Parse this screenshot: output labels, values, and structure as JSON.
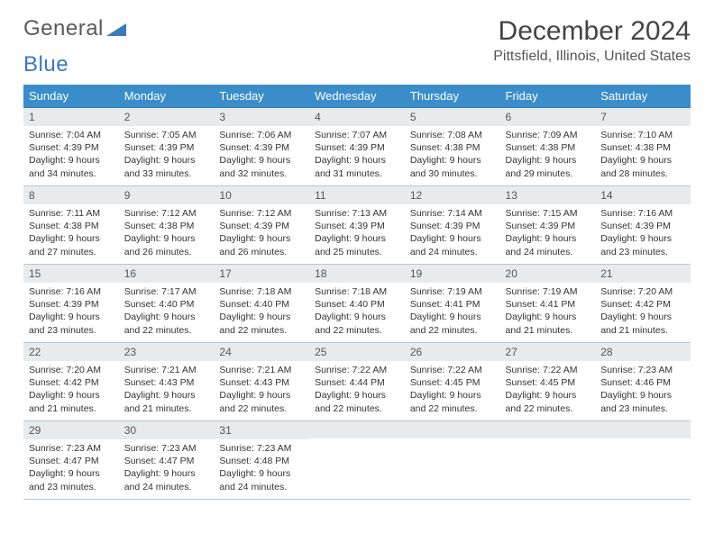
{
  "brand": {
    "word1": "General",
    "word2": "Blue"
  },
  "title": "December 2024",
  "location": "Pittsfield, Illinois, United States",
  "colors": {
    "header_bg": "#3a8dc9",
    "header_text": "#ffffff",
    "row_border_top": "#3a7ab8",
    "row_border_bottom": "#b8c5d0",
    "daynum_bg": "#e8ebee",
    "text": "#333333",
    "brand_gray": "#5a5a5a",
    "brand_blue": "#3a7ab8",
    "background": "#ffffff"
  },
  "typography": {
    "title_fontsize": 30,
    "location_fontsize": 16,
    "header_fontsize": 13,
    "daynum_fontsize": 12,
    "body_fontsize": 10.5
  },
  "day_headers": [
    "Sunday",
    "Monday",
    "Tuesday",
    "Wednesday",
    "Thursday",
    "Friday",
    "Saturday"
  ],
  "weeks": [
    [
      {
        "num": "1",
        "sunrise": "Sunrise: 7:04 AM",
        "sunset": "Sunset: 4:39 PM",
        "daylight": "Daylight: 9 hours and 34 minutes."
      },
      {
        "num": "2",
        "sunrise": "Sunrise: 7:05 AM",
        "sunset": "Sunset: 4:39 PM",
        "daylight": "Daylight: 9 hours and 33 minutes."
      },
      {
        "num": "3",
        "sunrise": "Sunrise: 7:06 AM",
        "sunset": "Sunset: 4:39 PM",
        "daylight": "Daylight: 9 hours and 32 minutes."
      },
      {
        "num": "4",
        "sunrise": "Sunrise: 7:07 AM",
        "sunset": "Sunset: 4:39 PM",
        "daylight": "Daylight: 9 hours and 31 minutes."
      },
      {
        "num": "5",
        "sunrise": "Sunrise: 7:08 AM",
        "sunset": "Sunset: 4:38 PM",
        "daylight": "Daylight: 9 hours and 30 minutes."
      },
      {
        "num": "6",
        "sunrise": "Sunrise: 7:09 AM",
        "sunset": "Sunset: 4:38 PM",
        "daylight": "Daylight: 9 hours and 29 minutes."
      },
      {
        "num": "7",
        "sunrise": "Sunrise: 7:10 AM",
        "sunset": "Sunset: 4:38 PM",
        "daylight": "Daylight: 9 hours and 28 minutes."
      }
    ],
    [
      {
        "num": "8",
        "sunrise": "Sunrise: 7:11 AM",
        "sunset": "Sunset: 4:38 PM",
        "daylight": "Daylight: 9 hours and 27 minutes."
      },
      {
        "num": "9",
        "sunrise": "Sunrise: 7:12 AM",
        "sunset": "Sunset: 4:38 PM",
        "daylight": "Daylight: 9 hours and 26 minutes."
      },
      {
        "num": "10",
        "sunrise": "Sunrise: 7:12 AM",
        "sunset": "Sunset: 4:39 PM",
        "daylight": "Daylight: 9 hours and 26 minutes."
      },
      {
        "num": "11",
        "sunrise": "Sunrise: 7:13 AM",
        "sunset": "Sunset: 4:39 PM",
        "daylight": "Daylight: 9 hours and 25 minutes."
      },
      {
        "num": "12",
        "sunrise": "Sunrise: 7:14 AM",
        "sunset": "Sunset: 4:39 PM",
        "daylight": "Daylight: 9 hours and 24 minutes."
      },
      {
        "num": "13",
        "sunrise": "Sunrise: 7:15 AM",
        "sunset": "Sunset: 4:39 PM",
        "daylight": "Daylight: 9 hours and 24 minutes."
      },
      {
        "num": "14",
        "sunrise": "Sunrise: 7:16 AM",
        "sunset": "Sunset: 4:39 PM",
        "daylight": "Daylight: 9 hours and 23 minutes."
      }
    ],
    [
      {
        "num": "15",
        "sunrise": "Sunrise: 7:16 AM",
        "sunset": "Sunset: 4:39 PM",
        "daylight": "Daylight: 9 hours and 23 minutes."
      },
      {
        "num": "16",
        "sunrise": "Sunrise: 7:17 AM",
        "sunset": "Sunset: 4:40 PM",
        "daylight": "Daylight: 9 hours and 22 minutes."
      },
      {
        "num": "17",
        "sunrise": "Sunrise: 7:18 AM",
        "sunset": "Sunset: 4:40 PM",
        "daylight": "Daylight: 9 hours and 22 minutes."
      },
      {
        "num": "18",
        "sunrise": "Sunrise: 7:18 AM",
        "sunset": "Sunset: 4:40 PM",
        "daylight": "Daylight: 9 hours and 22 minutes."
      },
      {
        "num": "19",
        "sunrise": "Sunrise: 7:19 AM",
        "sunset": "Sunset: 4:41 PM",
        "daylight": "Daylight: 9 hours and 22 minutes."
      },
      {
        "num": "20",
        "sunrise": "Sunrise: 7:19 AM",
        "sunset": "Sunset: 4:41 PM",
        "daylight": "Daylight: 9 hours and 21 minutes."
      },
      {
        "num": "21",
        "sunrise": "Sunrise: 7:20 AM",
        "sunset": "Sunset: 4:42 PM",
        "daylight": "Daylight: 9 hours and 21 minutes."
      }
    ],
    [
      {
        "num": "22",
        "sunrise": "Sunrise: 7:20 AM",
        "sunset": "Sunset: 4:42 PM",
        "daylight": "Daylight: 9 hours and 21 minutes."
      },
      {
        "num": "23",
        "sunrise": "Sunrise: 7:21 AM",
        "sunset": "Sunset: 4:43 PM",
        "daylight": "Daylight: 9 hours and 21 minutes."
      },
      {
        "num": "24",
        "sunrise": "Sunrise: 7:21 AM",
        "sunset": "Sunset: 4:43 PM",
        "daylight": "Daylight: 9 hours and 22 minutes."
      },
      {
        "num": "25",
        "sunrise": "Sunrise: 7:22 AM",
        "sunset": "Sunset: 4:44 PM",
        "daylight": "Daylight: 9 hours and 22 minutes."
      },
      {
        "num": "26",
        "sunrise": "Sunrise: 7:22 AM",
        "sunset": "Sunset: 4:45 PM",
        "daylight": "Daylight: 9 hours and 22 minutes."
      },
      {
        "num": "27",
        "sunrise": "Sunrise: 7:22 AM",
        "sunset": "Sunset: 4:45 PM",
        "daylight": "Daylight: 9 hours and 22 minutes."
      },
      {
        "num": "28",
        "sunrise": "Sunrise: 7:23 AM",
        "sunset": "Sunset: 4:46 PM",
        "daylight": "Daylight: 9 hours and 23 minutes."
      }
    ],
    [
      {
        "num": "29",
        "sunrise": "Sunrise: 7:23 AM",
        "sunset": "Sunset: 4:47 PM",
        "daylight": "Daylight: 9 hours and 23 minutes."
      },
      {
        "num": "30",
        "sunrise": "Sunrise: 7:23 AM",
        "sunset": "Sunset: 4:47 PM",
        "daylight": "Daylight: 9 hours and 24 minutes."
      },
      {
        "num": "31",
        "sunrise": "Sunrise: 7:23 AM",
        "sunset": "Sunset: 4:48 PM",
        "daylight": "Daylight: 9 hours and 24 minutes."
      },
      {
        "empty": true
      },
      {
        "empty": true
      },
      {
        "empty": true
      },
      {
        "empty": true
      }
    ]
  ]
}
